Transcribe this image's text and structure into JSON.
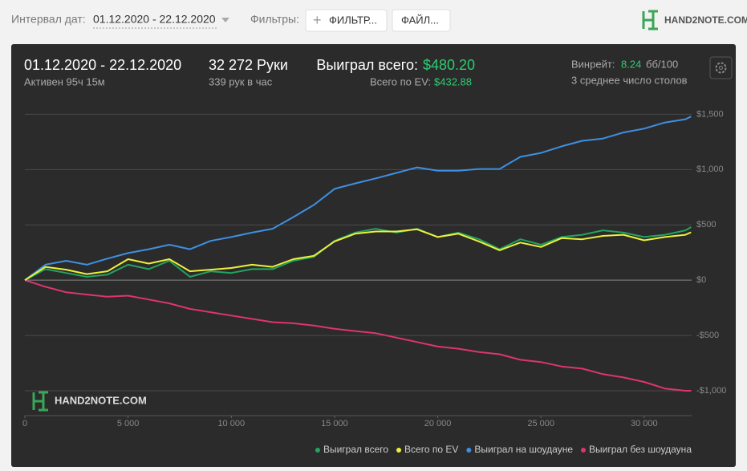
{
  "toolbar": {
    "date_label": "Интервал дат:",
    "date_range": "01.12.2020 - 22.12.2020",
    "filters_label": "Фильтры:",
    "filter_button": "ФИЛЬТР...",
    "file_button": "ФАЙЛ...",
    "logo": "HAND2NOTE.COM"
  },
  "summary": {
    "period": "01.12.2020 - 22.12.2020",
    "active": "Активен 95ч 15м",
    "hands": "32 272 Руки",
    "hands_per_hour": "339 рук в час",
    "won_label": "Выиграл всего:",
    "won_value": "$480.20",
    "ev_label": "Всего по EV:",
    "ev_value": "$432.88",
    "winrate_label": "Винрейт:",
    "winrate_value": 8.24,
    "winrate_unit": "бб/100",
    "tables": "3 среднее число столов"
  },
  "chart_data": {
    "type": "line",
    "watermark": "HAND2NOTE.COM",
    "x": [
      0,
      1000,
      2000,
      3000,
      4000,
      5000,
      6000,
      7000,
      8000,
      9000,
      10000,
      11000,
      12000,
      13000,
      14000,
      15000,
      16000,
      17000,
      18000,
      19000,
      20000,
      21000,
      22000,
      23000,
      24000,
      25000,
      26000,
      27000,
      28000,
      29000,
      30000,
      31000,
      32000,
      32272
    ],
    "series": [
      {
        "name": "Выиграл всего",
        "color": "#22a460",
        "values": [
          0,
          100,
          65,
          30,
          50,
          140,
          100,
          175,
          30,
          80,
          65,
          100,
          100,
          175,
          210,
          355,
          430,
          465,
          430,
          465,
          390,
          430,
          370,
          280,
          370,
          320,
          390,
          410,
          450,
          430,
          390,
          410,
          450,
          480
        ]
      },
      {
        "name": "Всего по EV",
        "color": "#eef03a",
        "values": [
          0,
          120,
          95,
          55,
          80,
          190,
          150,
          190,
          80,
          95,
          110,
          140,
          120,
          190,
          220,
          350,
          420,
          440,
          440,
          460,
          390,
          420,
          350,
          270,
          340,
          300,
          380,
          370,
          400,
          410,
          360,
          390,
          410,
          433
        ]
      },
      {
        "name": "Выиграл на шоудауне",
        "color": "#3f8fe2",
        "values": [
          0,
          140,
          175,
          140,
          195,
          245,
          280,
          320,
          280,
          355,
          390,
          430,
          465,
          570,
          680,
          825,
          875,
          920,
          970,
          1020,
          990,
          990,
          1005,
          1005,
          1115,
          1150,
          1210,
          1260,
          1280,
          1335,
          1370,
          1425,
          1455,
          1480
        ]
      },
      {
        "name": "Выиграл без шоудауна",
        "color": "#de3470",
        "values": [
          0,
          -60,
          -110,
          -130,
          -150,
          -140,
          -175,
          -210,
          -260,
          -290,
          -320,
          -350,
          -380,
          -390,
          -410,
          -440,
          -460,
          -480,
          -520,
          -560,
          -600,
          -620,
          -650,
          -670,
          -720,
          -740,
          -780,
          -800,
          -850,
          -880,
          -920,
          -980,
          -1000,
          -1000
        ]
      }
    ],
    "xlim": [
      0,
      32300
    ],
    "xticks": [
      0,
      {
        "value": 5000,
        "label": "5 000"
      },
      {
        "value": 10000,
        "label": "10 000"
      },
      {
        "value": 15000,
        "label": "15 000"
      },
      {
        "value": 20000,
        "label": "20 000"
      },
      {
        "value": 25000,
        "label": "25 000"
      },
      {
        "value": 30000,
        "label": "30 000"
      }
    ],
    "ylim": [
      -1225,
      1590
    ],
    "yticks": [
      {
        "value": -1000,
        "label": "-$1,000"
      },
      {
        "value": -500,
        "label": "-$500"
      },
      {
        "value": 0,
        "label": "$0"
      },
      {
        "value": 500,
        "label": "$500"
      },
      {
        "value": 1000,
        "label": "$1,000"
      },
      {
        "value": 1500,
        "label": "$1,500"
      }
    ],
    "grid": true,
    "legend": "bottom-right"
  }
}
